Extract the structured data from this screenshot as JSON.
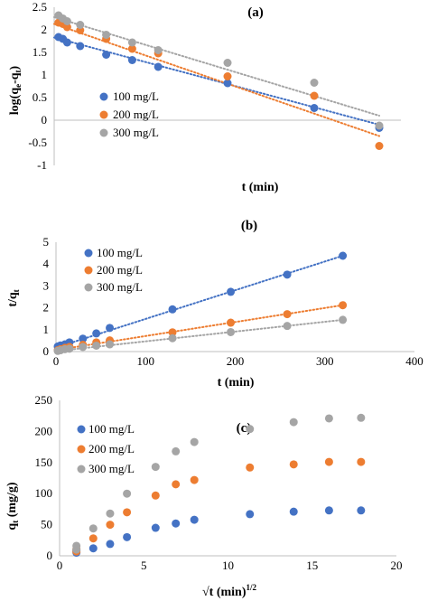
{
  "chart_data": [
    {
      "type": "scatter",
      "panel_label": "(a)",
      "xlabel": "t (min)",
      "ylabel": "log(qₑ-qₜ)",
      "ylabel_main": "log(q",
      "ylabel_sub1": "e",
      "ylabel_mid": "-q",
      "ylabel_sub2": "t",
      "ylabel_end": ")",
      "xlim": [
        0,
        400
      ],
      "ylim": [
        -1,
        2.5
      ],
      "x_ticks_shown": false,
      "y_ticks": [
        "-1",
        "-0.5",
        "0",
        "0.5",
        "1",
        "1.5",
        "2",
        "2.5"
      ],
      "trendlines": "linear, dotted",
      "legend": {
        "placement": "left-middle",
        "entries": [
          "100 mg/L",
          "200 mg/L",
          "300 mg/L"
        ]
      },
      "series": [
        {
          "name": "100 mg/L",
          "color": "#4472C4",
          "x": [
            5,
            10,
            15,
            30,
            60,
            90,
            120,
            200,
            300,
            375
          ],
          "y": [
            1.84,
            1.8,
            1.72,
            1.64,
            1.45,
            1.33,
            1.18,
            0.82,
            0.27,
            -0.17
          ],
          "fit": {
            "x": [
              0,
              375
            ],
            "y": [
              1.83,
              -0.1
            ]
          }
        },
        {
          "name": "200 mg/L",
          "color": "#ED7D31",
          "x": [
            5,
            10,
            15,
            30,
            60,
            90,
            120,
            200,
            300,
            375
          ],
          "y": [
            2.16,
            2.13,
            2.06,
            1.99,
            1.8,
            1.58,
            1.48,
            0.97,
            0.54,
            -0.57
          ],
          "fit": {
            "x": [
              0,
              375
            ],
            "y": [
              2.13,
              -0.35
            ]
          }
        },
        {
          "name": "300 mg/L",
          "color": "#A5A5A5",
          "x": [
            5,
            10,
            15,
            30,
            60,
            90,
            120,
            200,
            300,
            375
          ],
          "y": [
            2.32,
            2.25,
            2.19,
            2.11,
            1.89,
            1.72,
            1.55,
            1.27,
            0.83,
            -0.12
          ],
          "fit": {
            "x": [
              0,
              375
            ],
            "y": [
              2.28,
              0.1
            ]
          }
        }
      ]
    },
    {
      "type": "scatter",
      "panel_label": "(b)",
      "xlabel": "t (min)",
      "ylabel_main": "t/q",
      "ylabel_sub": "t",
      "xlim": [
        0,
        400
      ],
      "ylim": [
        0,
        5
      ],
      "x_ticks": [
        "0",
        "100",
        "200",
        "300",
        "400"
      ],
      "y_ticks": [
        "0",
        "1",
        "2",
        "3",
        "4",
        "5"
      ],
      "trendlines": "linear, dotted",
      "legend": {
        "placement": "top-left",
        "entries": [
          "100 mg/L",
          "200 mg/L",
          "300 mg/L"
        ]
      },
      "series": [
        {
          "name": "100 mg/L",
          "color": "#4472C4",
          "x": [
            2,
            5,
            10,
            15,
            30,
            45,
            60,
            130,
            195,
            258,
            320
          ],
          "y": [
            0.23,
            0.28,
            0.33,
            0.42,
            0.59,
            0.83,
            1.08,
            1.93,
            2.73,
            3.52,
            4.38
          ],
          "fit": {
            "x": [
              0,
              320
            ],
            "y": [
              0.18,
              4.38
            ]
          }
        },
        {
          "name": "200 mg/L",
          "color": "#ED7D31",
          "x": [
            2,
            5,
            10,
            15,
            30,
            45,
            60,
            130,
            195,
            258,
            320
          ],
          "y": [
            0.06,
            0.11,
            0.17,
            0.21,
            0.31,
            0.42,
            0.51,
            0.88,
            1.32,
            1.71,
            2.12
          ],
          "fit": {
            "x": [
              0,
              320
            ],
            "y": [
              0.07,
              2.12
            ]
          }
        },
        {
          "name": "300 mg/L",
          "color": "#A5A5A5",
          "x": [
            2,
            5,
            10,
            15,
            30,
            45,
            60,
            130,
            195,
            258,
            320
          ],
          "y": [
            0.03,
            0.06,
            0.11,
            0.13,
            0.21,
            0.27,
            0.33,
            0.61,
            0.89,
            1.17,
            1.45
          ],
          "fit": {
            "x": [
              0,
              320
            ],
            "y": [
              0.02,
              1.45
            ]
          }
        }
      ]
    },
    {
      "type": "scatter",
      "panel_label": "(c)",
      "xlabel_main": "√t (min)",
      "xlabel_sup": "1/2",
      "ylabel_main": "q",
      "ylabel_sub": "t",
      "ylabel_end": " (mg/g)",
      "xlim": [
        0,
        20
      ],
      "ylim": [
        0,
        250
      ],
      "x_ticks": [
        "0",
        "5",
        "10",
        "15",
        "20"
      ],
      "y_ticks": [
        "0",
        "50",
        "100",
        "150",
        "200",
        "250"
      ],
      "legend": {
        "placement": "top-left",
        "entries": [
          "100 mg/L",
          "200 mg/L",
          "300 mg/L"
        ]
      },
      "series": [
        {
          "name": "100 mg/L",
          "color": "#4472C4",
          "x": [
            1,
            1,
            2,
            3,
            4,
            5.7,
            6.9,
            8,
            11.3,
            13.9,
            16,
            17.9
          ],
          "y": [
            5,
            8,
            12,
            19,
            30,
            45,
            52,
            58,
            67,
            71,
            73,
            73
          ],
          "fit": null
        },
        {
          "name": "200 mg/L",
          "color": "#ED7D31",
          "x": [
            1,
            1,
            2,
            3,
            4,
            5.7,
            6.9,
            8,
            11.3,
            13.9,
            16,
            17.9
          ],
          "y": [
            7,
            11,
            28,
            50,
            70,
            97,
            115,
            122,
            142,
            147,
            151,
            151
          ],
          "fit": null
        },
        {
          "name": "300 mg/L",
          "color": "#A5A5A5",
          "x": [
            1,
            1,
            2,
            3,
            4,
            5.7,
            6.9,
            8,
            11.3,
            13.9,
            16,
            17.9
          ],
          "y": [
            10,
            16,
            44,
            68,
            100,
            143,
            168,
            183,
            204,
            215,
            221,
            222
          ],
          "fit": null
        }
      ]
    }
  ]
}
